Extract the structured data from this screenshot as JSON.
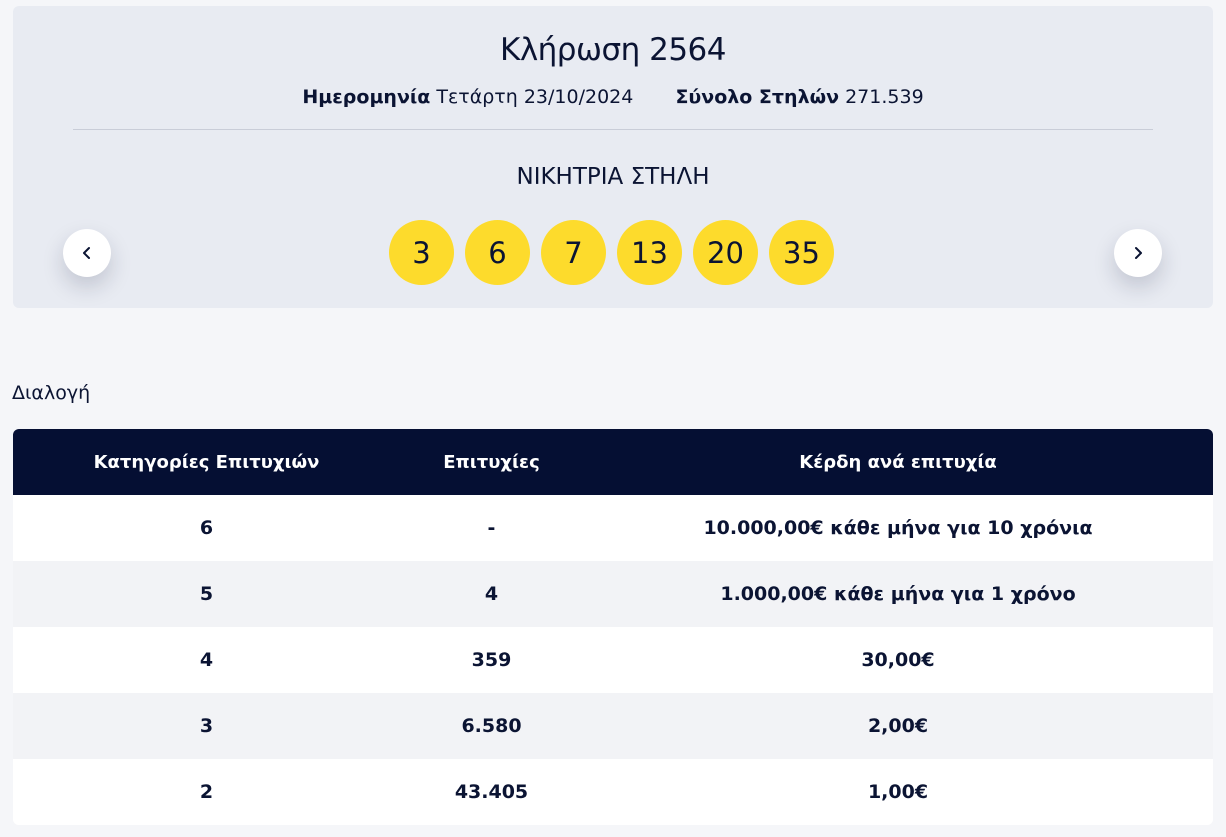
{
  "draw": {
    "title": "Κλήρωση 2564",
    "date_label": "Ημερομηνία",
    "date_value": "Τετάρτη 23/10/2024",
    "total_label": "Σύνολο Στηλών",
    "total_value": "271.539",
    "winning_title": "ΝΙΚΗΤΡΙΑ ΣΤΗΛΗ",
    "numbers": [
      "3",
      "6",
      "7",
      "13",
      "20",
      "35"
    ],
    "ball_color": "#fddb2c"
  },
  "nav": {
    "prev_icon": "chevron-left-icon",
    "next_icon": "chevron-right-icon"
  },
  "section": {
    "label": "Διαλογή"
  },
  "table": {
    "headers": [
      "Κατηγορίες Επιτυχιών",
      "Επιτυχίες",
      "Κέρδη ανά επιτυχία"
    ],
    "rows": [
      [
        "6",
        "-",
        "10.000,00€ κάθε μήνα για 10 χρόνια"
      ],
      [
        "5",
        "4",
        "1.000,00€ κάθε μήνα για 1 χρόνο"
      ],
      [
        "4",
        "359",
        "30,00€"
      ],
      [
        "3",
        "6.580",
        "2,00€"
      ],
      [
        "2",
        "43.405",
        "1,00€"
      ]
    ],
    "header_color": "#050f33"
  }
}
